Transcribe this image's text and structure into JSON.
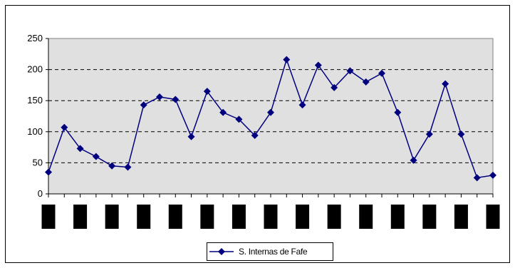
{
  "chart_data": {
    "type": "line",
    "title": "",
    "xlabel": "",
    "ylabel": "",
    "ylim": [
      0,
      250
    ],
    "yticks": [
      "0",
      "50",
      "100",
      "150",
      "200",
      "250"
    ],
    "grid": "horizontal-dashed",
    "legend_position": "bottom",
    "x_tick_labels_redacted": true,
    "plot_background": "#e0e0e0",
    "series": [
      {
        "name": "S. Internas de Fafe",
        "color": "#00007f",
        "marker": "diamond",
        "values": [
          35,
          107,
          73,
          60,
          45,
          43,
          143,
          156,
          152,
          92,
          165,
          131,
          120,
          94,
          131,
          216,
          143,
          207,
          171,
          198,
          180,
          194,
          131,
          54,
          96,
          177,
          96,
          26,
          30
        ]
      }
    ]
  }
}
